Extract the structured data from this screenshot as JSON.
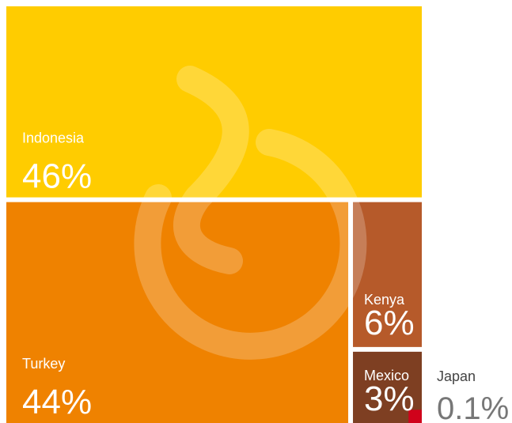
{
  "chart_data": {
    "type": "treemap",
    "categories": [
      "Indonesia",
      "Turkey",
      "Kenya",
      "Mexico",
      "Japan"
    ],
    "values": [
      46,
      44,
      6,
      3,
      0.1
    ],
    "value_labels": [
      "46%",
      "44%",
      "6%",
      "3%",
      "0.1%"
    ],
    "colors": [
      "#ffcc00",
      "#ef8200",
      "#b65a2a",
      "#7e3f22",
      "#d0021b"
    ]
  }
}
